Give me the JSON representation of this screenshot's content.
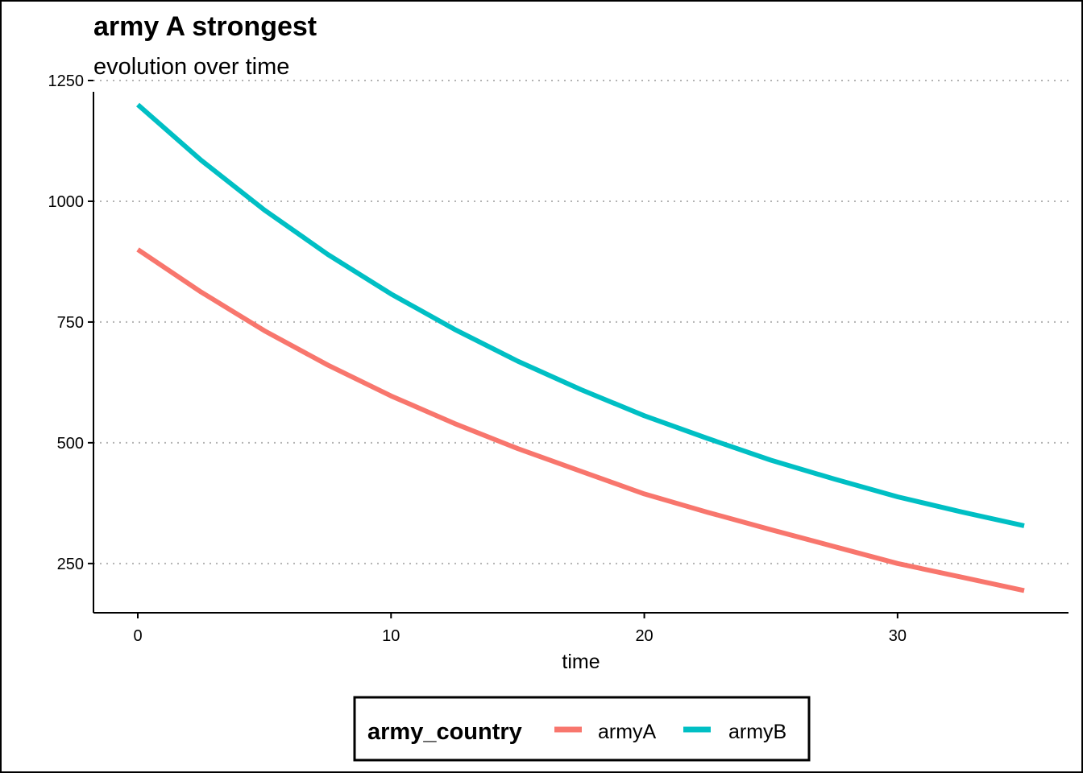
{
  "chart_data": {
    "type": "line",
    "title": "army A strongest",
    "subtitle": "evolution over time",
    "xlabel": "time",
    "ylabel": "",
    "xlim": [
      -1.75,
      36.75
    ],
    "ylim": [
      148,
      1250
    ],
    "x_ticks": [
      0,
      10,
      20,
      30
    ],
    "y_ticks": [
      250,
      500,
      750,
      1000,
      1250
    ],
    "grid": {
      "horizontal_major": "dotted",
      "vertical": false
    },
    "legend": {
      "title": "army_country",
      "placement": "bottom",
      "entries": [
        "armyA",
        "armyB"
      ]
    },
    "series": [
      {
        "name": "armyA",
        "color": "#F8766D",
        "x": [
          0,
          2.5,
          5,
          7.5,
          10,
          12.5,
          15,
          17.5,
          20,
          22.5,
          25,
          27.5,
          30,
          32.5,
          35
        ],
        "values": [
          900,
          812,
          732,
          661,
          597,
          540,
          488,
          441,
          394,
          356,
          320,
          285,
          250,
          222,
          194
        ]
      },
      {
        "name": "armyB",
        "color": "#00BFC4",
        "x": [
          0,
          2.5,
          5,
          7.5,
          10,
          12.5,
          15,
          17.5,
          20,
          22.5,
          25,
          27.5,
          30,
          32.5,
          35
        ],
        "values": [
          1200,
          1085,
          982,
          890,
          808,
          735,
          669,
          610,
          556,
          509,
          464,
          425,
          388,
          357,
          328
        ]
      }
    ]
  }
}
